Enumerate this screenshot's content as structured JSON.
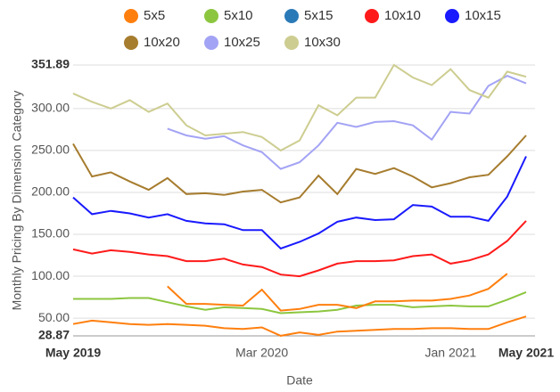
{
  "chart_data": {
    "type": "line",
    "y_label": "Monthly Pricing By Dimension Category",
    "x_label": "Date",
    "categories": [
      "May 2019",
      null,
      null,
      null,
      null,
      null,
      null,
      null,
      null,
      null,
      "Mar 2020",
      null,
      null,
      null,
      null,
      null,
      null,
      null,
      null,
      null,
      "Jan 2021",
      null,
      null,
      null,
      "May 2021"
    ],
    "ylim": [
      28.87,
      351.89
    ],
    "yticks": [
      28.87,
      {
        "value": 50,
        "label": "50.00"
      },
      {
        "value": 100,
        "label": "100.00"
      },
      {
        "value": 150,
        "label": "150.00"
      },
      {
        "value": 200,
        "label": "200.00"
      },
      {
        "value": 250,
        "label": "250.00"
      },
      {
        "value": 300,
        "label": "300.00"
      },
      351.89
    ],
    "grid": true,
    "series": [
      {
        "name": "5x5",
        "color": "#ff7f0e",
        "values": [
          43,
          47,
          45,
          43,
          42,
          43,
          42,
          41,
          38,
          37,
          39,
          29,
          33,
          30,
          34,
          35,
          36,
          37,
          37,
          38,
          38,
          37,
          37,
          45,
          52
        ]
      },
      {
        "name": "5x10",
        "color": "#8cc63f",
        "values": [
          73,
          73,
          73,
          74,
          74,
          69,
          64,
          60,
          63,
          62,
          61,
          56,
          57,
          58,
          60,
          65,
          66,
          66,
          63,
          64,
          65,
          64,
          64,
          72,
          81
        ]
      },
      {
        "name": "5x15",
        "color": "#2a7ab8",
        "values": [
          null,
          null,
          null,
          null,
          null,
          null,
          null,
          null,
          null,
          null,
          null,
          null,
          null,
          null,
          null,
          null,
          null,
          null,
          null,
          null,
          null,
          null,
          null,
          null,
          null
        ]
      },
      {
        "name": "10x10",
        "color": "#ff1a1a",
        "values": [
          132,
          127,
          131,
          129,
          126,
          124,
          118,
          118,
          121,
          114,
          111,
          102,
          100,
          107,
          115,
          118,
          118,
          119,
          124,
          126,
          115,
          119,
          126,
          142,
          166
        ]
      },
      {
        "name": "10x15",
        "color": "#1a1aff",
        "values": [
          194,
          174,
          178,
          175,
          170,
          174,
          166,
          163,
          162,
          155,
          155,
          133,
          141,
          151,
          165,
          170,
          167,
          168,
          185,
          183,
          171,
          171,
          166,
          195,
          243
        ]
      },
      {
        "name": "10x20",
        "color": "#a67c2e",
        "values": [
          258,
          219,
          224,
          213,
          203,
          217,
          198,
          199,
          197,
          201,
          203,
          188,
          194,
          220,
          198,
          228,
          222,
          229,
          219,
          206,
          211,
          218,
          221,
          243,
          268
        ]
      },
      {
        "name": "10x25",
        "color": "#a3a3f5",
        "values": [
          null,
          null,
          null,
          null,
          null,
          276,
          268,
          264,
          267,
          256,
          248,
          228,
          236,
          256,
          283,
          278,
          284,
          285,
          280,
          263,
          296,
          294,
          327,
          339,
          330
        ]
      },
      {
        "name": "10x30",
        "color": "#cdcd91",
        "values": [
          318,
          308,
          300,
          310,
          296,
          306,
          280,
          268,
          270,
          272,
          266,
          250,
          262,
          304,
          292,
          313,
          313,
          352,
          337,
          328,
          347,
          322,
          313,
          344,
          338
        ]
      },
      {
        "color": "#ff7f0e",
        "values": [
          null,
          null,
          null,
          null,
          null,
          88,
          67,
          67,
          66,
          65,
          84,
          59,
          61,
          66,
          66,
          62,
          70,
          70,
          71,
          71,
          73,
          77,
          85,
          103,
          null
        ]
      }
    ]
  }
}
